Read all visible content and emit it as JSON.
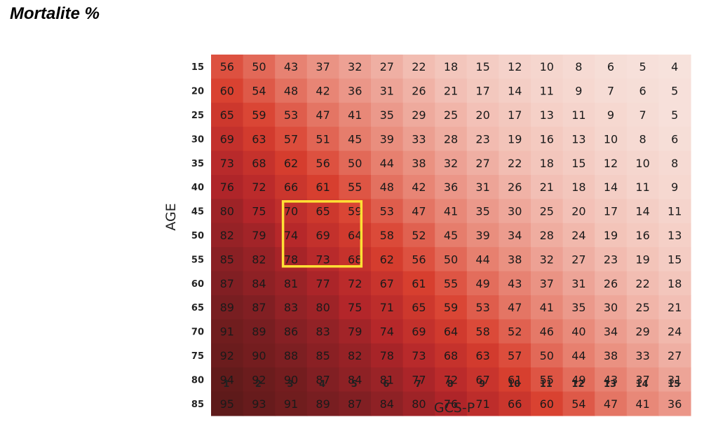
{
  "title": "Mortalite %",
  "chart_data": {
    "type": "heatmap",
    "xlabel": "GCS-P",
    "ylabel": "AGE",
    "x": [
      1,
      2,
      3,
      4,
      5,
      6,
      7,
      8,
      9,
      10,
      11,
      12,
      13,
      14,
      15
    ],
    "y": [
      15,
      20,
      25,
      30,
      35,
      40,
      45,
      50,
      55,
      60,
      65,
      70,
      75,
      80,
      85
    ],
    "values": [
      [
        56,
        50,
        43,
        37,
        32,
        27,
        22,
        18,
        15,
        12,
        10,
        8,
        6,
        5,
        4
      ],
      [
        60,
        54,
        48,
        42,
        36,
        31,
        26,
        21,
        17,
        14,
        11,
        9,
        7,
        6,
        5
      ],
      [
        65,
        59,
        53,
        47,
        41,
        35,
        29,
        25,
        20,
        17,
        13,
        11,
        9,
        7,
        5
      ],
      [
        69,
        63,
        57,
        51,
        45,
        39,
        33,
        28,
        23,
        19,
        16,
        13,
        10,
        8,
        6
      ],
      [
        73,
        68,
        62,
        56,
        50,
        44,
        38,
        32,
        27,
        22,
        18,
        15,
        12,
        10,
        8
      ],
      [
        76,
        72,
        66,
        61,
        55,
        48,
        42,
        36,
        31,
        26,
        21,
        18,
        14,
        11,
        9
      ],
      [
        80,
        75,
        70,
        65,
        59,
        53,
        47,
        41,
        35,
        30,
        25,
        20,
        17,
        14,
        11
      ],
      [
        82,
        79,
        74,
        69,
        64,
        58,
        52,
        45,
        39,
        34,
        28,
        24,
        19,
        16,
        13
      ],
      [
        85,
        82,
        78,
        73,
        68,
        62,
        56,
        50,
        44,
        38,
        32,
        27,
        23,
        19,
        15
      ],
      [
        87,
        84,
        81,
        77,
        72,
        67,
        61,
        55,
        49,
        43,
        37,
        31,
        26,
        22,
        18
      ],
      [
        89,
        87,
        83,
        80,
        75,
        71,
        65,
        59,
        53,
        47,
        41,
        35,
        30,
        25,
        21
      ],
      [
        91,
        89,
        86,
        83,
        79,
        74,
        69,
        64,
        58,
        52,
        46,
        40,
        34,
        29,
        24
      ],
      [
        92,
        90,
        88,
        85,
        82,
        78,
        73,
        68,
        63,
        57,
        50,
        44,
        38,
        33,
        27
      ],
      [
        94,
        92,
        90,
        87,
        84,
        81,
        77,
        72,
        67,
        61,
        55,
        49,
        43,
        37,
        31
      ],
      [
        95,
        93,
        91,
        89,
        87,
        84,
        80,
        76,
        71,
        66,
        60,
        54,
        47,
        41,
        36
      ]
    ],
    "highlight": {
      "x_range": [
        3,
        5
      ],
      "y_range": [
        45,
        55
      ],
      "color": "#ffe135"
    },
    "colors": {
      "low": "#f5dcd6",
      "high": "#5e1a1a",
      "text": "#1a1a1a"
    },
    "grid": false,
    "legend": "none"
  }
}
